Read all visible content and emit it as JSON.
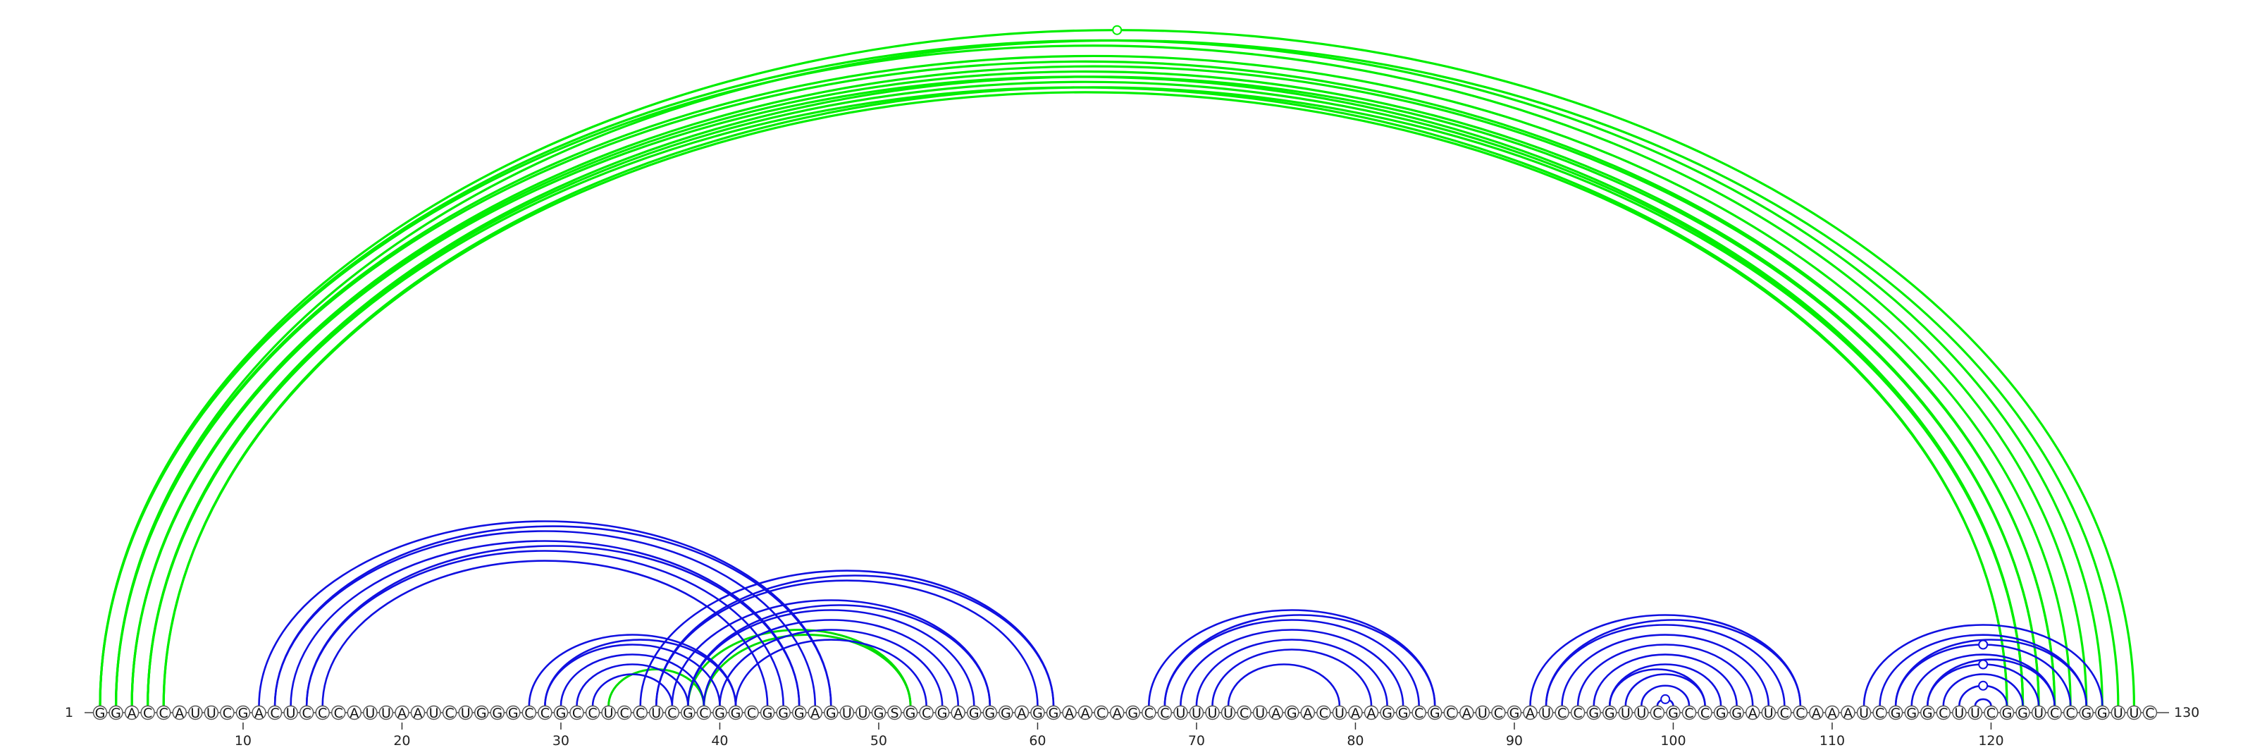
{
  "sequence": "GGACCAUUCGACUCCCAUUAAUCUGGGCCGCCUCCUCGCGGCGGGAGUUGSGCGAGGGAGGAACAGCCUUUUCUAGACUAAGGCGCAUCGAUCCGGUUCGCCGGAUCCAAAUCGGGCUUCGGUCCGGUUC",
  "start_label": "1",
  "end_label": "130",
  "ticks": [
    10,
    20,
    30,
    40,
    50,
    60,
    70,
    80,
    90,
    100,
    110,
    120
  ],
  "colors": {
    "upper_pairs": "#00ee00",
    "lower_pairs": "#1010e0",
    "lower_pairs_alt": "#00dd00"
  },
  "chart_data": {
    "type": "arc-diagram",
    "length": 130,
    "green_pairs": [
      [
        1,
        126
      ],
      [
        1,
        127
      ],
      [
        2,
        125
      ],
      [
        2,
        124
      ],
      [
        3,
        124
      ],
      [
        3,
        123
      ],
      [
        4,
        122
      ],
      [
        5,
        121
      ],
      [
        2,
        128
      ],
      [
        1,
        129
      ],
      [
        4,
        123
      ],
      [
        3,
        122
      ],
      [
        5,
        122
      ],
      [
        4,
        121
      ],
      [
        33,
        39
      ],
      [
        39,
        52
      ],
      [
        38,
        52
      ]
    ],
    "blue_pairs": [
      [
        11,
        47
      ],
      [
        12,
        46
      ],
      [
        13,
        45
      ],
      [
        14,
        44
      ],
      [
        15,
        43
      ],
      [
        12,
        47
      ],
      [
        14,
        45
      ],
      [
        28,
        41
      ],
      [
        29,
        40
      ],
      [
        30,
        39
      ],
      [
        31,
        38
      ],
      [
        32,
        37
      ],
      [
        29,
        41
      ],
      [
        35,
        61
      ],
      [
        36,
        60
      ],
      [
        37,
        57
      ],
      [
        38,
        56
      ],
      [
        39,
        55
      ],
      [
        40,
        54
      ],
      [
        41,
        53
      ],
      [
        36,
        61
      ],
      [
        38,
        57
      ],
      [
        67,
        85
      ],
      [
        68,
        84
      ],
      [
        69,
        83
      ],
      [
        70,
        82
      ],
      [
        71,
        81
      ],
      [
        72,
        79
      ],
      [
        68,
        85
      ],
      [
        91,
        108
      ],
      [
        92,
        107
      ],
      [
        93,
        106
      ],
      [
        94,
        105
      ],
      [
        95,
        104
      ],
      [
        96,
        103
      ],
      [
        97,
        102
      ],
      [
        98,
        101
      ],
      [
        99,
        100
      ],
      [
        92,
        108
      ],
      [
        96,
        102
      ],
      [
        112,
        127
      ],
      [
        113,
        126
      ],
      [
        114,
        125
      ],
      [
        115,
        124
      ],
      [
        116,
        123
      ],
      [
        117,
        122
      ],
      [
        118,
        121
      ],
      [
        119,
        120
      ],
      [
        114,
        126
      ],
      [
        116,
        124
      ]
    ],
    "pair_markers": [
      {
        "pair": [
          1,
          129
        ],
        "color": "#00ee00"
      },
      {
        "pair": [
          99,
          100
        ],
        "color": "#1010e0"
      },
      {
        "pair": [
          118,
          121
        ],
        "color": "#1010e0"
      },
      {
        "pair": [
          116,
          123
        ],
        "color": "#1010e0"
      },
      {
        "pair": [
          114,
          125
        ],
        "color": "#1010e0"
      }
    ]
  }
}
